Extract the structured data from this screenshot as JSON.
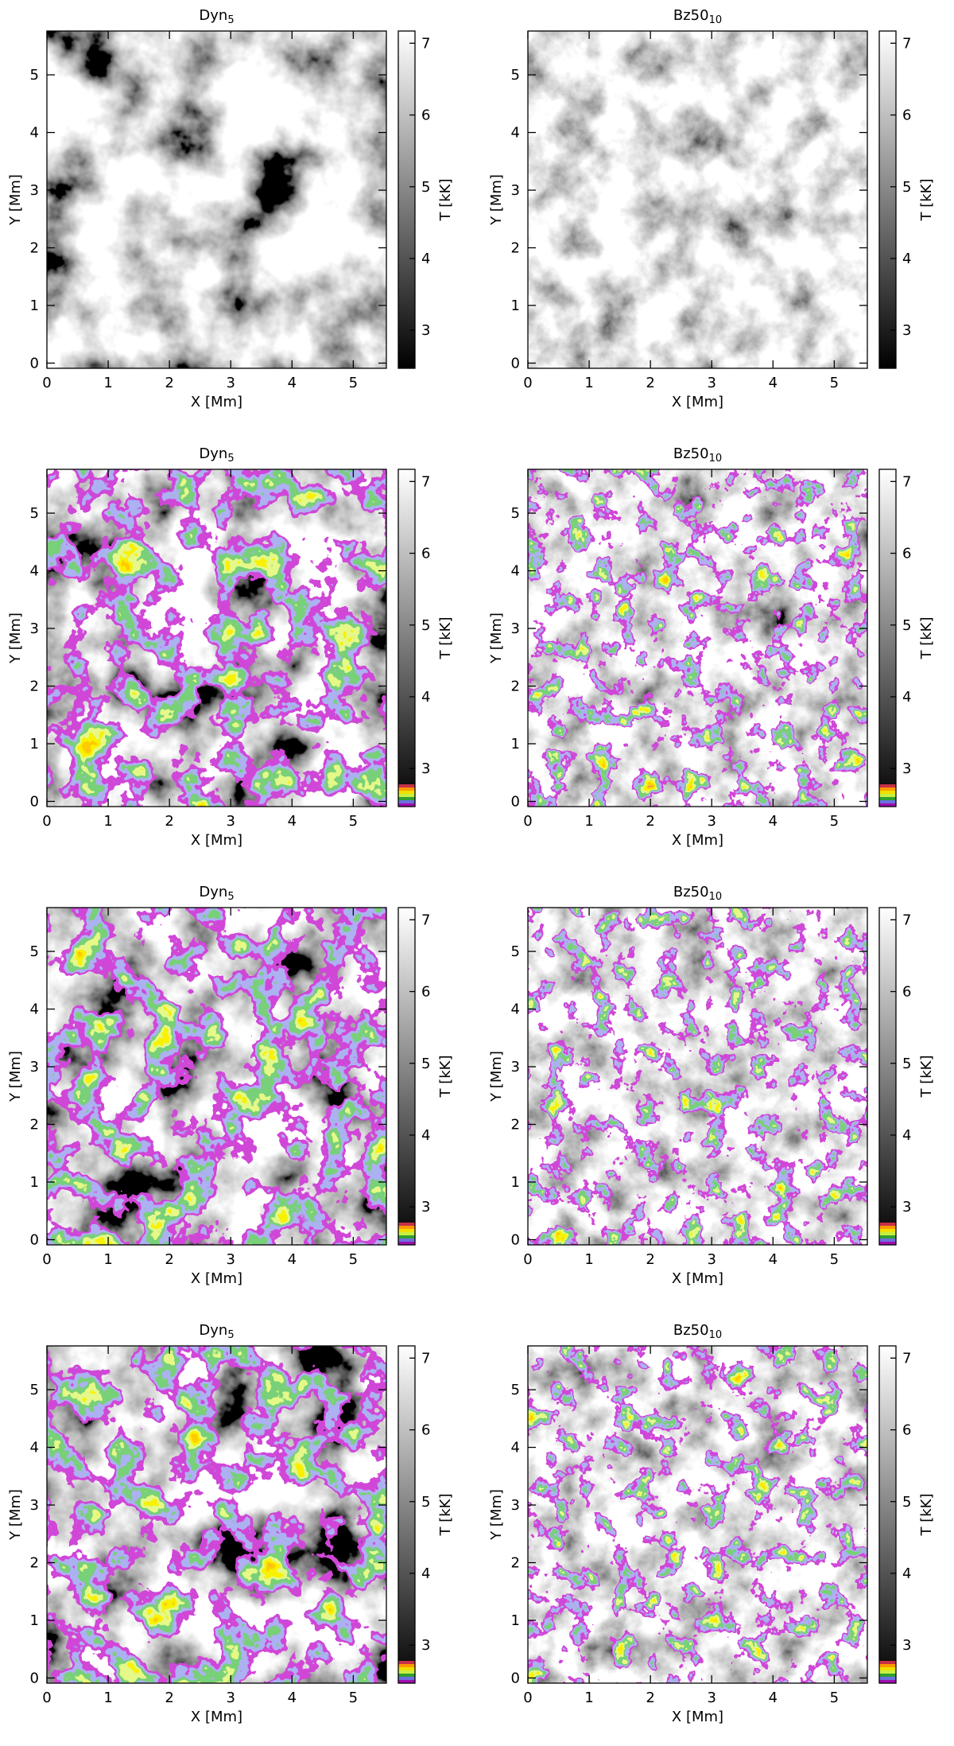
{
  "chart_data": [
    {
      "type": "image",
      "title": "Dyn",
      "title_sub": "5",
      "xlabel": "X [Mm]",
      "ylabel": "Y [Mm]",
      "colorbar_label": "T [kK]",
      "xlim": [
        0,
        5.54
      ],
      "ylim": [
        -0.09,
        5.76
      ],
      "xticks": [
        0,
        1,
        2,
        3,
        4,
        5
      ],
      "yticks": [
        0,
        1,
        2,
        3,
        4,
        5
      ],
      "clim": [
        2.47,
        7.17
      ],
      "cticks": [
        3,
        4,
        5,
        6,
        7
      ]
    },
    {
      "type": "image",
      "title": "Bz50",
      "title_sub": "10",
      "xlabel": "X [Mm]",
      "ylabel": "Y [Mm]",
      "colorbar_label": "T [kK]",
      "xlim": [
        0,
        5.54
      ],
      "ylim": [
        -0.09,
        5.76
      ],
      "xticks": [
        0,
        1,
        2,
        3,
        4,
        5
      ],
      "yticks": [
        0,
        1,
        2,
        3,
        4,
        5
      ],
      "clim": [
        2.47,
        7.17
      ],
      "cticks": [
        3,
        4,
        5,
        6,
        7
      ]
    },
    {
      "type": "image",
      "title": "Dyn",
      "title_sub": "5",
      "xlabel": "X [Mm]",
      "ylabel": "Y [Mm]",
      "colorbar_label": "T [kK]",
      "xlim": [
        0,
        5.54
      ],
      "ylim": [
        -0.09,
        5.76
      ],
      "xticks": [
        0,
        1,
        2,
        3,
        4,
        5
      ],
      "yticks": [
        0,
        1,
        2,
        3,
        4,
        5
      ],
      "clim": [
        2.47,
        7.17
      ],
      "cticks": [
        3,
        4,
        5,
        6,
        7
      ],
      "colors": [
        "#a010b0",
        "#6a70e0",
        "#30a030",
        "#c8f040",
        "#f0e000",
        "#ff9a00",
        "#c83048"
      ]
    },
    {
      "type": "image",
      "title": "Bz50",
      "title_sub": "10",
      "xlabel": "X [Mm]",
      "ylabel": "Y [Mm]",
      "colorbar_label": "T [kK]",
      "xlim": [
        0,
        5.54
      ],
      "ylim": [
        -0.09,
        5.76
      ],
      "xticks": [
        0,
        1,
        2,
        3,
        4,
        5
      ],
      "yticks": [
        0,
        1,
        2,
        3,
        4,
        5
      ],
      "clim": [
        2.47,
        7.17
      ],
      "cticks": [
        3,
        4,
        5,
        6,
        7
      ],
      "colors": [
        "#a010b0",
        "#6a70e0",
        "#30a030",
        "#c8f040",
        "#f0e000",
        "#ff9a00",
        "#c83048"
      ]
    },
    {
      "type": "image",
      "title": "Dyn",
      "title_sub": "5",
      "xlabel": "X [Mm]",
      "ylabel": "Y [Mm]",
      "colorbar_label": "T [kK]",
      "xlim": [
        0,
        5.54
      ],
      "ylim": [
        -0.09,
        5.76
      ],
      "xticks": [
        0,
        1,
        2,
        3,
        4,
        5
      ],
      "yticks": [
        0,
        1,
        2,
        3,
        4,
        5
      ],
      "clim": [
        2.47,
        7.17
      ],
      "cticks": [
        3,
        4,
        5,
        6,
        7
      ],
      "colors": [
        "#a010b0",
        "#6a70e0",
        "#30a030",
        "#c8f040",
        "#f0e000",
        "#ff9a00",
        "#c83048"
      ]
    },
    {
      "type": "image",
      "title": "Bz50",
      "title_sub": "10",
      "xlabel": "X [Mm]",
      "ylabel": "Y [Mm]",
      "colorbar_label": "T [kK]",
      "xlim": [
        0,
        5.54
      ],
      "ylim": [
        -0.09,
        5.76
      ],
      "xticks": [
        0,
        1,
        2,
        3,
        4,
        5
      ],
      "yticks": [
        0,
        1,
        2,
        3,
        4,
        5
      ],
      "clim": [
        2.47,
        7.17
      ],
      "cticks": [
        3,
        4,
        5,
        6,
        7
      ],
      "colors": [
        "#a010b0",
        "#6a70e0",
        "#30a030",
        "#c8f040",
        "#f0e000",
        "#ff9a00",
        "#c83048"
      ]
    },
    {
      "type": "image",
      "title": "Dyn",
      "title_sub": "5",
      "xlabel": "X [Mm]",
      "ylabel": "Y [Mm]",
      "colorbar_label": "T [kK]",
      "xlim": [
        0,
        5.54
      ],
      "ylim": [
        -0.09,
        5.76
      ],
      "xticks": [
        0,
        1,
        2,
        3,
        4,
        5
      ],
      "yticks": [
        0,
        1,
        2,
        3,
        4,
        5
      ],
      "clim": [
        2.47,
        7.17
      ],
      "cticks": [
        3,
        4,
        5,
        6,
        7
      ],
      "colors": [
        "#a010b0",
        "#6a70e0",
        "#30a030",
        "#c8f040",
        "#f0e000",
        "#ff9a00",
        "#c83048"
      ]
    },
    {
      "type": "image",
      "title": "Bz50",
      "title_sub": "10",
      "xlabel": "X [Mm]",
      "ylabel": "Y [Mm]",
      "colorbar_label": "T [kK]",
      "xlim": [
        0,
        5.54
      ],
      "ylim": [
        -0.09,
        5.76
      ],
      "xticks": [
        0,
        1,
        2,
        3,
        4,
        5
      ],
      "yticks": [
        0,
        1,
        2,
        3,
        4,
        5
      ],
      "clim": [
        2.47,
        7.17
      ],
      "cticks": [
        3,
        4,
        5,
        6,
        7
      ],
      "colors": [
        "#a010b0",
        "#6a70e0",
        "#30a030",
        "#c8f040",
        "#f0e000",
        "#ff9a00",
        "#c83048"
      ]
    }
  ]
}
